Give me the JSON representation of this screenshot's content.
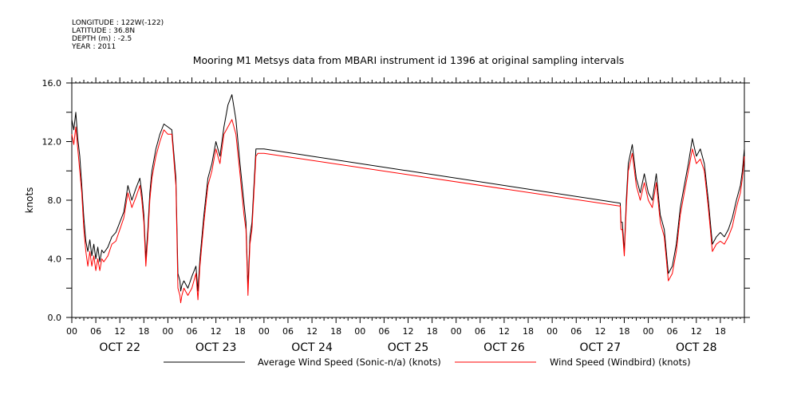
{
  "header": {
    "lines": [
      "LONGITUDE : 122W(-122)",
      "LATITUDE : 36.8N",
      "DEPTH (m) : -2.5",
      "YEAR : 2011"
    ]
  },
  "chart_data": {
    "type": "line",
    "title": "Mooring M1 Metsys data from MBARI instrument id 1396 at original sampling intervals",
    "ylabel": "knots",
    "xlabel": "",
    "xlim_hours": [
      0,
      168
    ],
    "ylim": [
      0,
      16
    ],
    "yticks": [
      "0.0",
      "4.0",
      "8.0",
      "12.0",
      "16.0"
    ],
    "ytick_values": [
      0,
      4,
      8,
      12,
      16
    ],
    "hour_labels": [
      "00",
      "06",
      "12",
      "18"
    ],
    "days": [
      "OCT 22",
      "OCT 23",
      "OCT 24",
      "OCT 25",
      "OCT 26",
      "OCT 27",
      "OCT 28"
    ],
    "grid": false,
    "legend_position": "bottom",
    "series": [
      {
        "name": "Average Wind Speed (Sonic-n/a) (knots)",
        "color": "#000000",
        "x": [
          0,
          0.5,
          1,
          1.5,
          2,
          2.5,
          3,
          3.5,
          4,
          4.5,
          5,
          5.5,
          6,
          6.5,
          7,
          7.5,
          8,
          8.5,
          9,
          10,
          11,
          12,
          13,
          14,
          15,
          16,
          17,
          17.5,
          18,
          18.5,
          19,
          19.5,
          20,
          21,
          22,
          23,
          24,
          25,
          26,
          26.5,
          27,
          27.2,
          27.5,
          28,
          29,
          30,
          31,
          31.5,
          32,
          33,
          34,
          35,
          36,
          37,
          38,
          39,
          40,
          41,
          42,
          43,
          43.5,
          44,
          44.5,
          45,
          45.5,
          46,
          46.5,
          47,
          47.5,
          48,
          137,
          137.2,
          137.5,
          138,
          138.5,
          139,
          140,
          141,
          142,
          143,
          144,
          145,
          146,
          147,
          148,
          149,
          150,
          151,
          152,
          153,
          154,
          155,
          156,
          157,
          158,
          159,
          160,
          161,
          162,
          163,
          164,
          165,
          166,
          167,
          167.5,
          168
        ],
        "y": [
          13.5,
          12.8,
          14.0,
          12.2,
          11.0,
          9.0,
          6.8,
          5.2,
          4.5,
          5.3,
          4.2,
          5.0,
          4.0,
          4.8,
          3.8,
          4.6,
          4.4,
          4.6,
          4.8,
          5.5,
          5.8,
          6.5,
          7.2,
          9.0,
          8.0,
          8.8,
          9.5,
          8.5,
          7.0,
          4.0,
          6.0,
          8.5,
          10.0,
          11.5,
          12.5,
          13.2,
          13.0,
          12.8,
          9.5,
          3.0,
          2.5,
          1.8,
          2.2,
          2.5,
          2.0,
          2.8,
          3.5,
          1.8,
          4.0,
          7.0,
          9.5,
          10.5,
          12.0,
          11.0,
          13.0,
          14.5,
          15.2,
          13.5,
          10.5,
          7.8,
          6.5,
          2.0,
          5.5,
          6.5,
          9.0,
          11.5,
          11.5,
          11.5,
          11.5,
          11.5,
          7.8,
          6.5,
          6.5,
          4.5,
          8.0,
          10.5,
          11.8,
          9.5,
          8.5,
          9.8,
          8.5,
          8.0,
          9.8,
          7.0,
          6.0,
          3.0,
          3.5,
          5.0,
          7.5,
          9.0,
          10.5,
          12.2,
          11.0,
          11.5,
          10.5,
          8.0,
          5.0,
          5.5,
          5.8,
          5.5,
          6.0,
          6.8,
          8.0,
          9.0,
          10.0,
          11.5
        ]
      },
      {
        "name": "Wind Speed (Windbird) (knots)",
        "color": "#ff0000",
        "x": [
          0,
          0.5,
          1,
          1.5,
          2,
          2.5,
          3,
          3.5,
          4,
          4.5,
          5,
          5.5,
          6,
          6.5,
          7,
          7.5,
          8,
          8.5,
          9,
          10,
          11,
          12,
          13,
          14,
          15,
          16,
          17,
          17.5,
          18,
          18.5,
          19,
          19.5,
          20,
          21,
          22,
          23,
          24,
          25,
          26,
          26.5,
          27,
          27.2,
          27.5,
          28,
          29,
          30,
          31,
          31.5,
          32,
          33,
          34,
          35,
          36,
          37,
          38,
          39,
          40,
          41,
          42,
          43,
          43.5,
          44,
          44.5,
          45,
          45.5,
          46,
          46.5,
          47,
          47.5,
          48,
          137,
          137.2,
          137.5,
          138,
          138.5,
          139,
          140,
          141,
          142,
          143,
          144,
          145,
          146,
          147,
          148,
          149,
          150,
          151,
          152,
          153,
          154,
          155,
          156,
          157,
          158,
          159,
          160,
          161,
          162,
          163,
          164,
          165,
          166,
          167,
          167.5,
          168
        ],
        "y": [
          12.5,
          11.8,
          13.0,
          11.5,
          10.0,
          8.5,
          6.0,
          4.5,
          3.5,
          4.5,
          3.5,
          4.2,
          3.2,
          4.0,
          3.2,
          4.0,
          3.8,
          4.0,
          4.2,
          5.0,
          5.2,
          6.0,
          6.8,
          8.5,
          7.5,
          8.2,
          9.0,
          8.0,
          6.5,
          3.5,
          5.5,
          8.0,
          9.5,
          11.0,
          12.0,
          12.8,
          12.5,
          12.5,
          9.0,
          2.0,
          1.5,
          1.0,
          1.5,
          2.0,
          1.5,
          2.0,
          3.0,
          1.2,
          3.5,
          6.5,
          9.0,
          10.0,
          11.5,
          10.5,
          12.5,
          13.0,
          13.5,
          12.5,
          9.8,
          7.0,
          6.0,
          1.5,
          5.0,
          6.0,
          8.5,
          11.0,
          11.2,
          11.2,
          11.2,
          11.2,
          7.6,
          6.0,
          6.0,
          4.2,
          7.5,
          10.0,
          11.2,
          9.0,
          8.0,
          9.2,
          8.0,
          7.5,
          9.2,
          6.5,
          5.5,
          2.5,
          3.0,
          4.5,
          7.0,
          8.5,
          10.0,
          11.5,
          10.5,
          10.8,
          10.0,
          7.5,
          4.5,
          5.0,
          5.2,
          5.0,
          5.5,
          6.2,
          7.5,
          8.5,
          9.5,
          11.0
        ]
      }
    ]
  }
}
